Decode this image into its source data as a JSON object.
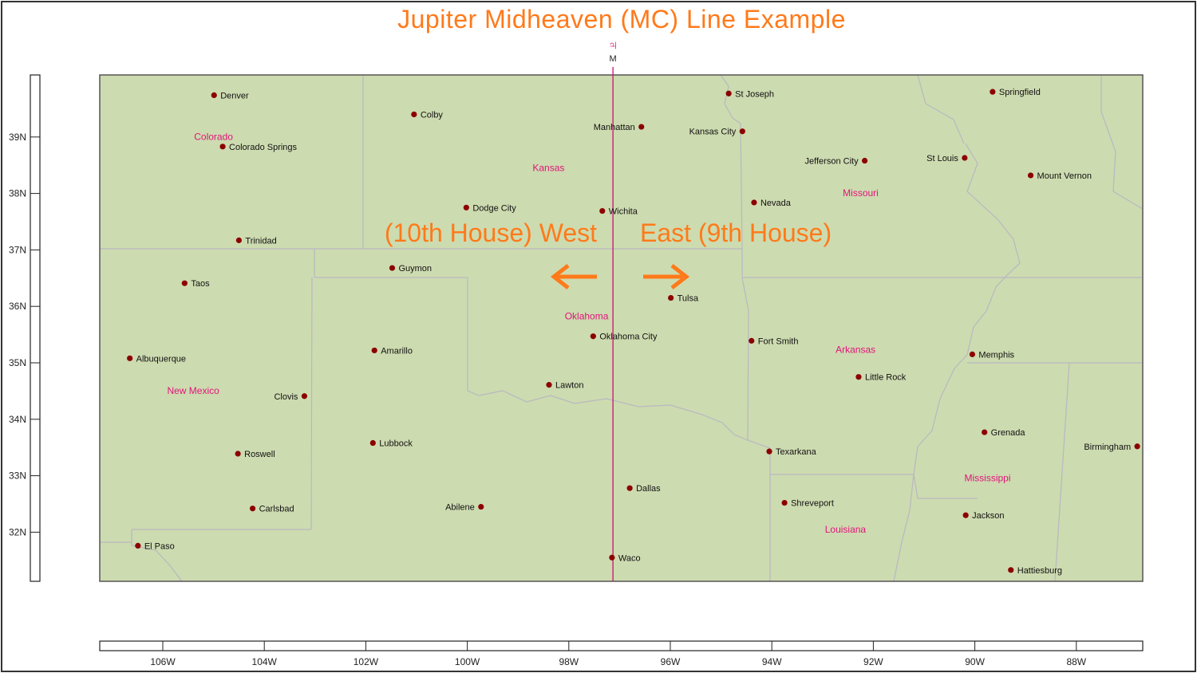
{
  "title": "Jupiter Midheaven (MC) Line Example",
  "colors": {
    "title": "#ff7a1a",
    "land": "#cddbb0",
    "border": "#b8b8c0",
    "frame": "#333333",
    "city_dot": "#8b0000",
    "state_label": "#e0157a",
    "mc_line": "#d01070",
    "arrow": "#ff7a1a"
  },
  "mc_line": {
    "longitude": -97.13,
    "planet_symbol": "♃",
    "angle_label": "M"
  },
  "callouts": {
    "west": "(10th House) West",
    "east": "East (9th House)"
  },
  "arrows": {
    "west": "left-arrow",
    "east": "right-arrow"
  },
  "axes": {
    "lon_ticks": [
      -106,
      -104,
      -102,
      -100,
      -98,
      -96,
      -94,
      -92,
      -90,
      -88
    ],
    "lon_labels": [
      "106W",
      "104W",
      "102W",
      "100W",
      "98W",
      "96W",
      "94W",
      "92W",
      "90W",
      "88W"
    ],
    "lat_ticks": [
      39,
      38,
      37,
      36,
      35,
      34,
      33,
      32
    ],
    "lat_labels": [
      "39N",
      "38N",
      "37N",
      "36N",
      "35N",
      "34N",
      "33N",
      "32N"
    ]
  },
  "states": [
    {
      "name": "Colorado",
      "lon": -105.0,
      "lat": 38.95
    },
    {
      "name": "Kansas",
      "lon": -98.4,
      "lat": 38.4
    },
    {
      "name": "Missouri",
      "lon": -92.25,
      "lat": 37.95
    },
    {
      "name": "Oklahoma",
      "lon": -97.65,
      "lat": 35.77
    },
    {
      "name": "Arkansas",
      "lon": -92.35,
      "lat": 35.18
    },
    {
      "name": "New Mexico",
      "lon": -105.4,
      "lat": 34.45
    },
    {
      "name": "Mississippi",
      "lon": -89.75,
      "lat": 32.9
    },
    {
      "name": "Louisiana",
      "lon": -92.55,
      "lat": 31.99
    }
  ],
  "cities": [
    {
      "name": "Denver",
      "lon": -104.99,
      "lat": 39.74,
      "side": "right"
    },
    {
      "name": "Colby",
      "lon": -101.05,
      "lat": 39.4,
      "side": "right"
    },
    {
      "name": "Colorado Springs",
      "lon": -104.82,
      "lat": 38.83,
      "side": "right"
    },
    {
      "name": "Manhattan",
      "lon": -96.57,
      "lat": 39.18,
      "side": "left"
    },
    {
      "name": "Kansas City",
      "lon": -94.58,
      "lat": 39.1,
      "side": "left"
    },
    {
      "name": "St Joseph",
      "lon": -94.85,
      "lat": 39.77,
      "side": "right"
    },
    {
      "name": "Springfield",
      "lon": -89.65,
      "lat": 39.8,
      "side": "right"
    },
    {
      "name": "St Louis",
      "lon": -90.2,
      "lat": 38.63,
      "side": "left"
    },
    {
      "name": "Jefferson City",
      "lon": -92.17,
      "lat": 38.58,
      "side": "left"
    },
    {
      "name": "Mount Vernon",
      "lon": -88.9,
      "lat": 38.32,
      "side": "right"
    },
    {
      "name": "Nevada",
      "lon": -94.35,
      "lat": 37.84,
      "side": "right"
    },
    {
      "name": "Dodge City",
      "lon": -100.02,
      "lat": 37.75,
      "side": "right"
    },
    {
      "name": "Wichita",
      "lon": -97.34,
      "lat": 37.69,
      "side": "right"
    },
    {
      "name": "Trinidad",
      "lon": -104.5,
      "lat": 37.17,
      "side": "right"
    },
    {
      "name": "Guymon",
      "lon": -101.48,
      "lat": 36.68,
      "side": "right"
    },
    {
      "name": "Taos",
      "lon": -105.57,
      "lat": 36.41,
      "side": "right"
    },
    {
      "name": "Tulsa",
      "lon": -95.99,
      "lat": 36.15,
      "side": "right"
    },
    {
      "name": "Oklahoma City",
      "lon": -97.52,
      "lat": 35.47,
      "side": "right"
    },
    {
      "name": "Fort Smith",
      "lon": -94.4,
      "lat": 35.39,
      "side": "right"
    },
    {
      "name": "Albuquerque",
      "lon": -106.65,
      "lat": 35.08,
      "side": "right"
    },
    {
      "name": "Amarillo",
      "lon": -101.83,
      "lat": 35.22,
      "side": "right"
    },
    {
      "name": "Memphis",
      "lon": -90.05,
      "lat": 35.15,
      "side": "right"
    },
    {
      "name": "Little Rock",
      "lon": -92.29,
      "lat": 34.75,
      "side": "right"
    },
    {
      "name": "Lawton",
      "lon": -98.39,
      "lat": 34.61,
      "side": "right"
    },
    {
      "name": "Clovis",
      "lon": -103.21,
      "lat": 34.41,
      "side": "left"
    },
    {
      "name": "Grenada",
      "lon": -89.81,
      "lat": 33.77,
      "side": "right"
    },
    {
      "name": "Lubbock",
      "lon": -101.86,
      "lat": 33.58,
      "side": "right"
    },
    {
      "name": "Texarkana",
      "lon": -94.05,
      "lat": 33.43,
      "side": "right"
    },
    {
      "name": "Birmingham",
      "lon": -86.8,
      "lat": 33.52,
      "side": "left"
    },
    {
      "name": "Roswell",
      "lon": -104.52,
      "lat": 33.39,
      "side": "right"
    },
    {
      "name": "Dallas",
      "lon": -96.8,
      "lat": 32.78,
      "side": "right"
    },
    {
      "name": "Carlsbad",
      "lon": -104.23,
      "lat": 32.42,
      "side": "right"
    },
    {
      "name": "Abilene",
      "lon": -99.73,
      "lat": 32.45,
      "side": "left"
    },
    {
      "name": "Shreveport",
      "lon": -93.75,
      "lat": 32.52,
      "side": "right"
    },
    {
      "name": "Jackson",
      "lon": -90.18,
      "lat": 32.3,
      "side": "right"
    },
    {
      "name": "El Paso",
      "lon": -106.49,
      "lat": 31.76,
      "side": "right"
    },
    {
      "name": "Waco",
      "lon": -97.15,
      "lat": 31.55,
      "side": "right"
    },
    {
      "name": "Hattiesburg",
      "lon": -89.29,
      "lat": 31.33,
      "side": "right"
    }
  ]
}
